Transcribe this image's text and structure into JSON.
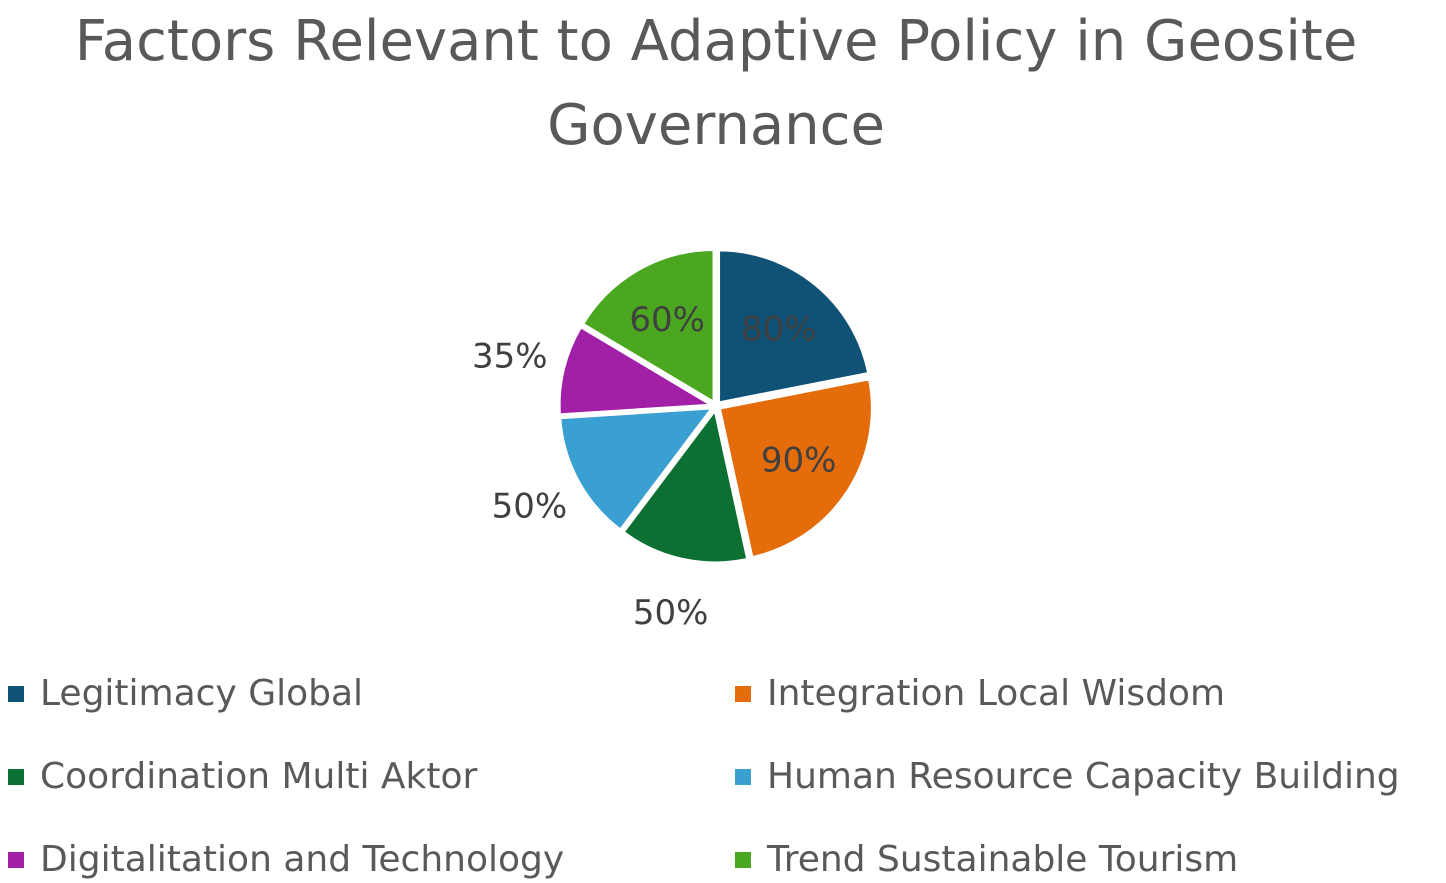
{
  "chart_data": {
    "type": "pie",
    "title": "Factors Relevant to Adaptive Policy in Geosite Governance",
    "categories": [
      "Legitimacy Global",
      "Integration Local Wisdom",
      "Coordination Multi Aktor",
      "Human Resource Capacity Building",
      "Digitalitation and Technology",
      "Trend Sustainable Tourism"
    ],
    "values": [
      80,
      90,
      50,
      50,
      35,
      60
    ],
    "data_labels": [
      "80%",
      "90%",
      "50%",
      "50%",
      "35%",
      "60%"
    ],
    "colors": [
      "#0f5276",
      "#e46c0a",
      "#0d7033",
      "#3a9fd1",
      "#a21fa8",
      "#4aa71f"
    ],
    "legend_position": "bottom",
    "exploded": true
  }
}
